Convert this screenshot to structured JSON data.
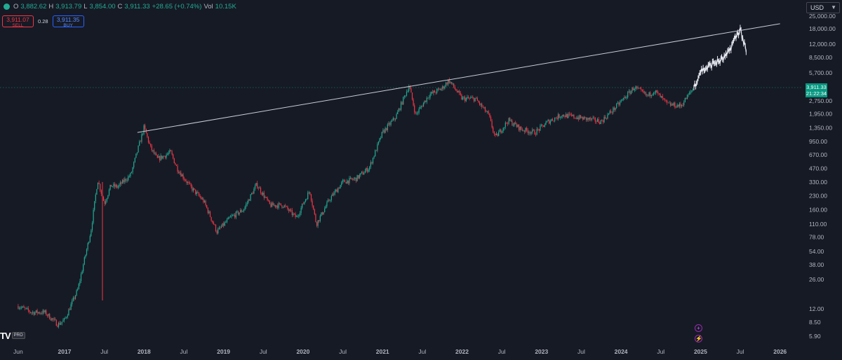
{
  "legend": {
    "open_label": "O",
    "open": "3,882.62",
    "high_label": "H",
    "high": "3,913.79",
    "low_label": "L",
    "low": "3,854.00",
    "close_label": "C",
    "close": "3,911.33",
    "change": "+28.65 (+0.74%)",
    "vol_label": "Vol",
    "vol": "10.15K",
    "up_color": "#22ab94",
    "down_color": "#f23645"
  },
  "trade": {
    "sell_price": "3,911.07",
    "sell_label": "SELL",
    "spread": "0.28",
    "buy_price": "3,911.35",
    "buy_label": "BUY"
  },
  "currency": {
    "value": "USD",
    "icon": "chevron-down-icon"
  },
  "logo": {
    "text": "TV",
    "badge": "PRO"
  },
  "price_label": {
    "value": "3,911.33",
    "countdown": "21:22:34",
    "color": "#089981"
  },
  "events": [
    {
      "icon": "plus-circle-icon"
    },
    {
      "icon": "flash-circle-icon"
    }
  ],
  "chart_data": {
    "type": "candlestick",
    "scale": "log",
    "title": "",
    "xlabel": "",
    "ylabel": "",
    "y_ticks": [
      "25,000.00",
      "18,000.00",
      "12,000.00",
      "8,500.00",
      "5,700.00",
      "2,750.00",
      "1,950.00",
      "1,350.00",
      "950.00",
      "670.00",
      "470.00",
      "330.00",
      "230.00",
      "160.00",
      "110.00",
      "78.00",
      "54.00",
      "38.00",
      "26.00",
      "12.00",
      "8.50",
      "5.90"
    ],
    "x_ticks": [
      "Jun",
      "2017",
      "Jul",
      "2018",
      "Jul",
      "2019",
      "Jul",
      "2020",
      "Jul",
      "2021",
      "Jul",
      "2022",
      "Jul",
      "2023",
      "Jul",
      "2024",
      "Jul",
      "2025",
      "Jul",
      "2026"
    ],
    "current_price": 3911.33,
    "up_color": "#22ab94",
    "down_color": "#f23645",
    "trendline": {
      "from": [
        "2017-12",
        1200
      ],
      "to": [
        "2026-01",
        20500
      ],
      "color": "#c8ccd6"
    },
    "projection_color": "#e8eaf2",
    "approx_path": [
      [
        "2016-06",
        13
      ],
      [
        "2016-08",
        11
      ],
      [
        "2016-10",
        11
      ],
      [
        "2016-12",
        8
      ],
      [
        "2017-01",
        9
      ],
      [
        "2017-03",
        20
      ],
      [
        "2017-05",
        95
      ],
      [
        "2017-06",
        350
      ],
      [
        "2017-07",
        190
      ],
      [
        "2017-08",
        300
      ],
      [
        "2017-09",
        290
      ],
      [
        "2017-11",
        400
      ],
      [
        "2018-01",
        1380
      ],
      [
        "2018-02",
        800
      ],
      [
        "2018-03",
        600
      ],
      [
        "2018-04",
        650
      ],
      [
        "2018-05",
        720
      ],
      [
        "2018-06",
        470
      ],
      [
        "2018-08",
        290
      ],
      [
        "2018-10",
        200
      ],
      [
        "2018-12",
        90
      ],
      [
        "2019-02",
        130
      ],
      [
        "2019-04",
        160
      ],
      [
        "2019-06",
        310
      ],
      [
        "2019-08",
        180
      ],
      [
        "2019-10",
        180
      ],
      [
        "2019-12",
        130
      ],
      [
        "2020-02",
        265
      ],
      [
        "2020-03",
        110
      ],
      [
        "2020-05",
        210
      ],
      [
        "2020-07",
        330
      ],
      [
        "2020-09",
        360
      ],
      [
        "2020-11",
        480
      ],
      [
        "2021-01",
        1200
      ],
      [
        "2021-03",
        1800
      ],
      [
        "2021-05",
        4100
      ],
      [
        "2021-06",
        1900
      ],
      [
        "2021-08",
        3200
      ],
      [
        "2021-10",
        3800
      ],
      [
        "2021-11",
        4700
      ],
      [
        "2022-01",
        2900
      ],
      [
        "2022-03",
        2900
      ],
      [
        "2022-05",
        1900
      ],
      [
        "2022-06",
        1050
      ],
      [
        "2022-08",
        1650
      ],
      [
        "2022-10",
        1300
      ],
      [
        "2022-12",
        1200
      ],
      [
        "2023-02",
        1600
      ],
      [
        "2023-04",
        1900
      ],
      [
        "2023-06",
        1800
      ],
      [
        "2023-08",
        1700
      ],
      [
        "2023-10",
        1600
      ],
      [
        "2023-12",
        2250
      ],
      [
        "2024-03",
        3900
      ],
      [
        "2024-05",
        3100
      ],
      [
        "2024-06",
        3600
      ],
      [
        "2024-08",
        2500
      ],
      [
        "2024-10",
        2400
      ],
      [
        "2024-12",
        3900
      ]
    ],
    "projection_path": [
      [
        "2024-12",
        3900
      ],
      [
        "2025-01",
        6000
      ],
      [
        "2025-02",
        6500
      ],
      [
        "2025-03",
        7400
      ],
      [
        "2025-04",
        7800
      ],
      [
        "2025-05",
        9000
      ],
      [
        "2025-06",
        13000
      ],
      [
        "2025-07",
        18000
      ],
      [
        "2025-08",
        9000
      ]
    ]
  }
}
